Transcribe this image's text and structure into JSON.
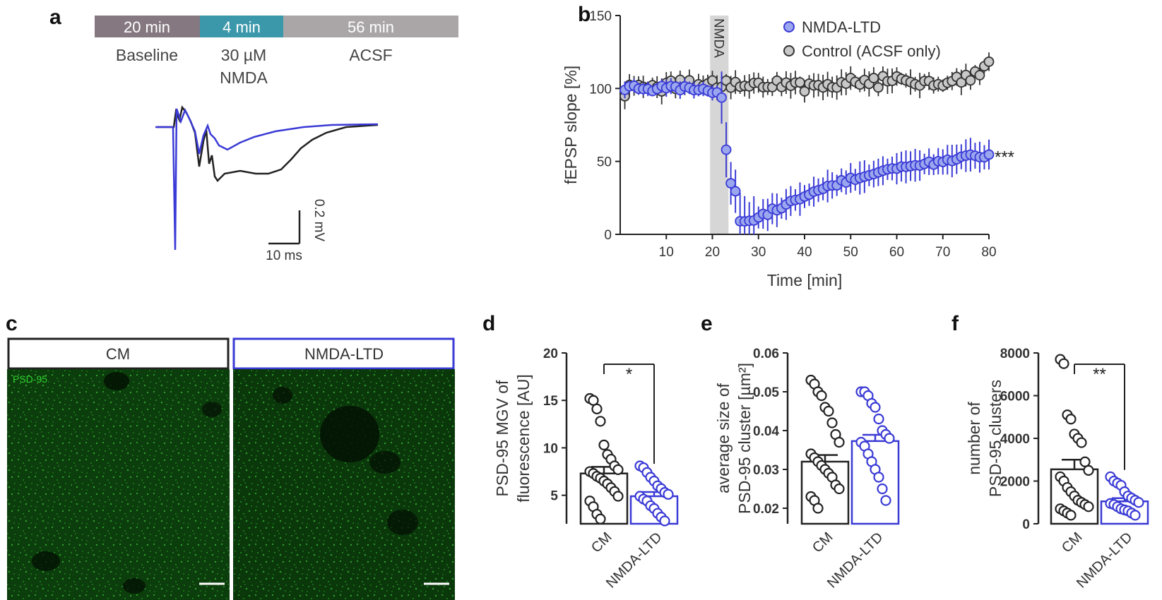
{
  "colors": {
    "control": "#222222",
    "nmda": "#3a3ad6",
    "nmda_fill": "#9aa6ee",
    "control_fill": "#c8c8c8",
    "timeline_baseline": "#857880",
    "timeline_nmda": "#3a98aa",
    "timeline_acsf": "#aaa6a8"
  },
  "panel_labels": {
    "a": "a",
    "b": "b",
    "c": "c",
    "d": "d",
    "e": "e",
    "f": "f"
  },
  "timeline": [
    {
      "duration": "20 min",
      "label": "Baseline",
      "label2": ""
    },
    {
      "duration": "4 min",
      "label": "30 µM",
      "label2": "NMDA"
    },
    {
      "duration": "56 min",
      "label": "ACSF",
      "label2": ""
    }
  ],
  "scalebar": {
    "vertical": "0.2 mV",
    "horizontal": "10 ms"
  },
  "images": {
    "left_title": "CM",
    "right_title": "NMDA-LTD",
    "stain_label": "PSD-95"
  },
  "chart_data": [
    {
      "id": "b",
      "type": "scatter",
      "xlabel": "Time [min]",
      "ylabel": "fEPSP slope [%]",
      "xlim": [
        0,
        80
      ],
      "ylim": [
        0,
        150
      ],
      "xticks": [
        10,
        20,
        30,
        40,
        50,
        60,
        70,
        80
      ],
      "yticks": [
        0,
        50,
        100,
        150
      ],
      "shaded_region": {
        "label": "NMDA",
        "x": [
          19.5,
          23.5
        ]
      },
      "significance": "***",
      "series": [
        {
          "name": "NMDA-LTD",
          "summary": [
            {
              "t": 1,
              "y": 100
            },
            {
              "t": 19,
              "y": 100
            },
            {
              "t": 22,
              "y": 93
            },
            {
              "t": 23,
              "y": 58
            },
            {
              "t": 24,
              "y": 35
            },
            {
              "t": 25,
              "y": 30
            },
            {
              "t": 26,
              "y": 10
            },
            {
              "t": 27,
              "y": 9
            },
            {
              "t": 28,
              "y": 8
            },
            {
              "t": 30,
              "y": 12
            },
            {
              "t": 35,
              "y": 19
            },
            {
              "t": 40,
              "y": 26
            },
            {
              "t": 45,
              "y": 33
            },
            {
              "t": 50,
              "y": 38
            },
            {
              "t": 55,
              "y": 41
            },
            {
              "t": 60,
              "y": 45
            },
            {
              "t": 65,
              "y": 48
            },
            {
              "t": 70,
              "y": 50
            },
            {
              "t": 75,
              "y": 53
            },
            {
              "t": 80,
              "y": 54
            }
          ]
        },
        {
          "name": "Control (ACSF only)",
          "summary": [
            {
              "t": 1,
              "y": 98
            },
            {
              "t": 10,
              "y": 102
            },
            {
              "t": 20,
              "y": 103
            },
            {
              "t": 30,
              "y": 102
            },
            {
              "t": 40,
              "y": 102
            },
            {
              "t": 50,
              "y": 104
            },
            {
              "t": 60,
              "y": 105
            },
            {
              "t": 70,
              "y": 105
            },
            {
              "t": 76,
              "y": 108
            },
            {
              "t": 80,
              "y": 118
            }
          ]
        }
      ]
    },
    {
      "id": "d",
      "type": "bar",
      "categories": [
        "CM",
        "NMDA-LTD"
      ],
      "values": [
        7.3,
        4.9
      ],
      "sem": [
        0.7,
        0.45
      ],
      "ylabel": "PSD-95 MGV of fluorescence [AU]",
      "ylabel_lines": [
        "PSD-95 MGV of",
        "fluorescence [AU]"
      ],
      "ylim": [
        2,
        20
      ],
      "yticks": [
        5,
        10,
        15,
        20
      ],
      "significance": "*",
      "points": [
        [
          15.2,
          15.0,
          14.1,
          12.8,
          10.3,
          9.3,
          8.8,
          8.1,
          7.7,
          7.5,
          7.3,
          7.0,
          6.8,
          6.5,
          6.2,
          5.8,
          5.4,
          4.9,
          4.4,
          3.8,
          3.0,
          2.5
        ],
        [
          8.1,
          7.9,
          7.4,
          6.9,
          6.5,
          6.0,
          5.7,
          5.3,
          5.1,
          4.9,
          4.6,
          4.4,
          3.9,
          3.6,
          3.1,
          2.7,
          2.3
        ]
      ]
    },
    {
      "id": "e",
      "type": "bar",
      "categories": [
        "CM",
        "NMDA-LTD"
      ],
      "values": [
        0.032,
        0.0373
      ],
      "sem": [
        0.0017,
        0.0016
      ],
      "ylabel": "average size of PSD-95 cluster [µm²]",
      "ylabel_lines": [
        "average size of",
        "PSD-95 cluster [µm²]"
      ],
      "ylim": [
        0.016,
        0.06
      ],
      "yticks": [
        0.02,
        0.03,
        0.04,
        0.05,
        0.06
      ],
      "yticklabels": [
        "0.02",
        "0.03",
        "0.04",
        "0.05",
        "0.06"
      ],
      "significance": "",
      "points": [
        [
          0.053,
          0.052,
          0.05,
          0.049,
          0.046,
          0.045,
          0.042,
          0.039,
          0.037,
          0.034,
          0.033,
          0.032,
          0.031,
          0.03,
          0.029,
          0.028,
          0.026,
          0.025,
          0.023,
          0.022,
          0.02
        ],
        [
          0.05,
          0.05,
          0.049,
          0.047,
          0.046,
          0.043,
          0.04,
          0.039,
          0.038,
          0.037,
          0.036,
          0.034,
          0.032,
          0.03,
          0.028,
          0.025,
          0.022
        ]
      ]
    },
    {
      "id": "f",
      "type": "bar",
      "categories": [
        "CM",
        "NMDA-LTD"
      ],
      "values": [
        2550,
        1050
      ],
      "sem": [
        450,
        150
      ],
      "ylabel": "number of PSD-95 clusters",
      "ylabel_lines": [
        "number of",
        "PSD-95 clusters"
      ],
      "ylim": [
        0,
        8000
      ],
      "yticks": [
        0,
        2000,
        4000,
        6000,
        8000
      ],
      "significance": "**",
      "points": [
        [
          7700,
          7500,
          5100,
          4900,
          4200,
          4000,
          3800,
          2900,
          2500,
          2200,
          2000,
          1700,
          1500,
          1300,
          1100,
          1000,
          900,
          800,
          700,
          600,
          500,
          400
        ],
        [
          2200,
          2000,
          1900,
          1800,
          1500,
          1300,
          1200,
          1100,
          1000,
          950,
          900,
          800,
          700,
          650,
          600,
          500,
          400
        ]
      ]
    }
  ]
}
